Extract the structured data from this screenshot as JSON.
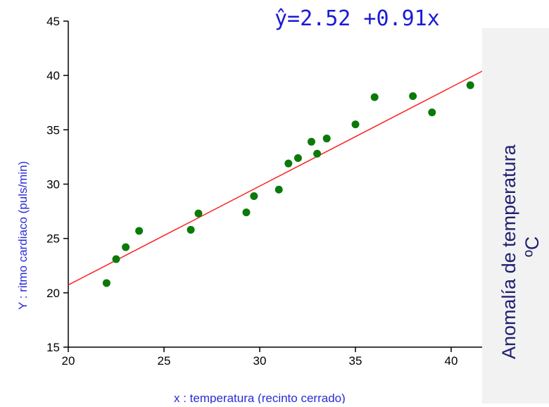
{
  "chart_data": {
    "type": "scatter",
    "title": "",
    "equation": "ŷ=2.52 +0.91x",
    "xlabel": "x : temperatura (recinto cerrado)",
    "ylabel": "Y : ritmo cardiaco (puls/min)",
    "xlim": [
      20,
      42
    ],
    "ylim": [
      15,
      45
    ],
    "xticks": [
      20,
      25,
      30,
      35,
      40
    ],
    "yticks": [
      15,
      20,
      25,
      30,
      35,
      40,
      45
    ],
    "grid": false,
    "colors": {
      "points": "#0a7a0a",
      "line": "#ff2020",
      "axis_title": "#2b2bd6",
      "equation": "#1a1ad6"
    },
    "series": [
      {
        "kind": "points",
        "x": [
          22.0,
          22.5,
          23.0,
          23.7,
          26.4,
          26.8,
          29.3,
          29.7,
          31.0,
          31.5,
          32.0,
          32.7,
          33.0,
          33.5,
          35.0,
          36.0,
          38.0,
          39.0,
          41.0
        ],
        "y": [
          20.9,
          23.1,
          24.2,
          25.7,
          25.8,
          27.3,
          27.4,
          28.9,
          29.5,
          31.9,
          32.4,
          33.9,
          32.8,
          34.2,
          35.5,
          38.0,
          38.1,
          36.6,
          39.1
        ]
      },
      {
        "kind": "regression-line",
        "intercept": 2.52,
        "slope": 0.91
      }
    ]
  },
  "side_caption": {
    "line1": "Anomalía de temperatura",
    "line2": "ºC"
  }
}
